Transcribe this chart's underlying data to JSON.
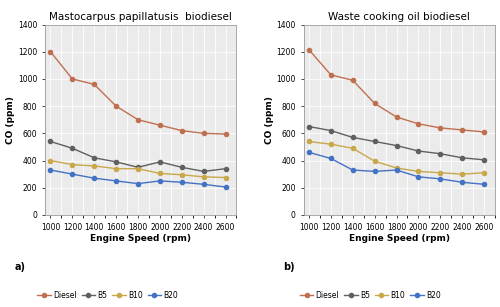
{
  "engine_speed": [
    1000,
    1200,
    1400,
    1600,
    1800,
    2000,
    2200,
    2400,
    2600
  ],
  "panel_a": {
    "title": "Mastocarpus papillatusis  biodiesel",
    "Diesel": [
      1200,
      1000,
      960,
      800,
      700,
      660,
      620,
      600,
      595
    ],
    "B5": [
      540,
      490,
      420,
      390,
      350,
      390,
      350,
      320,
      340
    ],
    "B10": [
      400,
      370,
      360,
      340,
      340,
      305,
      295,
      280,
      275
    ],
    "B20": [
      330,
      300,
      270,
      250,
      230,
      250,
      240,
      225,
      205
    ]
  },
  "panel_b": {
    "title": "Waste cooking oil biodiesel",
    "Diesel": [
      1215,
      1030,
      990,
      820,
      720,
      670,
      640,
      625,
      610
    ],
    "B5": [
      650,
      620,
      570,
      540,
      510,
      470,
      450,
      420,
      405
    ],
    "B10": [
      540,
      520,
      490,
      395,
      345,
      320,
      310,
      300,
      310
    ],
    "B20": [
      460,
      415,
      330,
      320,
      330,
      280,
      265,
      240,
      225
    ]
  },
  "colors": {
    "Diesel": "#c07050",
    "B5": "#606060",
    "B10": "#c8a84b",
    "B20": "#4472c4"
  },
  "xlabel": "Engine Speed (rpm)",
  "ylabel": "CO (ppm)",
  "ylim": [
    0,
    1400
  ],
  "yticks": [
    0,
    200,
    400,
    600,
    800,
    1000,
    1200,
    1400
  ],
  "xticks": [
    1000,
    1200,
    1400,
    1600,
    1800,
    2000,
    2200,
    2400,
    2600
  ],
  "legend_order": [
    "Diesel",
    "B5",
    "B10",
    "B20"
  ],
  "label_a": "a)",
  "label_b": "b)",
  "background_color": "#ebebeb",
  "grid_color": "#ffffff",
  "linewidth": 1.0,
  "markersize": 3.0,
  "title_fontsize": 7.5,
  "axis_label_fontsize": 6.5,
  "tick_fontsize": 5.5,
  "legend_fontsize": 5.5
}
